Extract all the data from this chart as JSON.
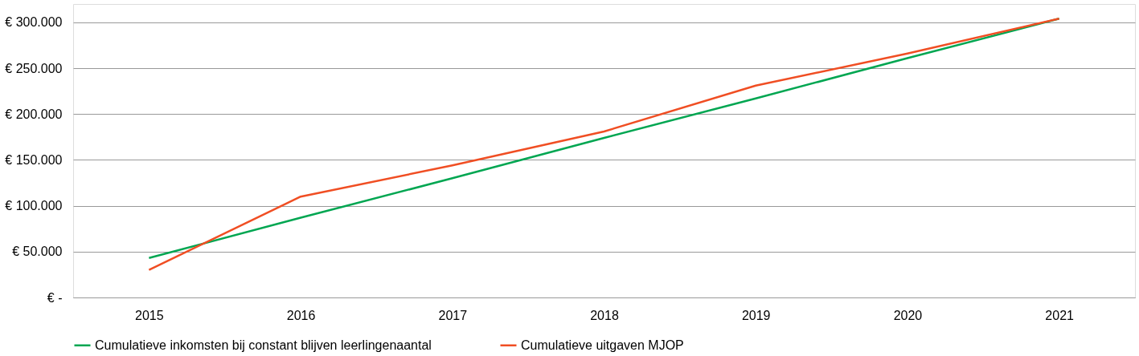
{
  "chart_data": {
    "type": "line",
    "categories": [
      "2015",
      "2016",
      "2017",
      "2018",
      "2019",
      "2020",
      "2021"
    ],
    "series": [
      {
        "name": "Cumulatieve inkomsten bij constant blijven leerlingenaantal",
        "color": "#00a651",
        "values": [
          43000,
          87000,
          130000,
          174000,
          217000,
          261000,
          304000
        ]
      },
      {
        "name": "Cumulatieve uitgaven MJOP",
        "color": "#f04e23",
        "values": [
          30000,
          110000,
          144000,
          181000,
          231000,
          266000,
          304000
        ]
      }
    ],
    "ylim": [
      0,
      320000
    ],
    "yticks": [
      {
        "value": 0,
        "label": "€ -"
      },
      {
        "value": 50000,
        "label": "€ 50.000"
      },
      {
        "value": 100000,
        "label": "€ 100.000"
      },
      {
        "value": 150000,
        "label": "€ 150.000"
      },
      {
        "value": 200000,
        "label": "€ 200.000"
      },
      {
        "value": 250000,
        "label": "€ 250.000"
      },
      {
        "value": 300000,
        "label": "€ 300.000"
      }
    ],
    "grid": "y",
    "legend": "bottom",
    "marker": "none",
    "line_style": "solid"
  }
}
